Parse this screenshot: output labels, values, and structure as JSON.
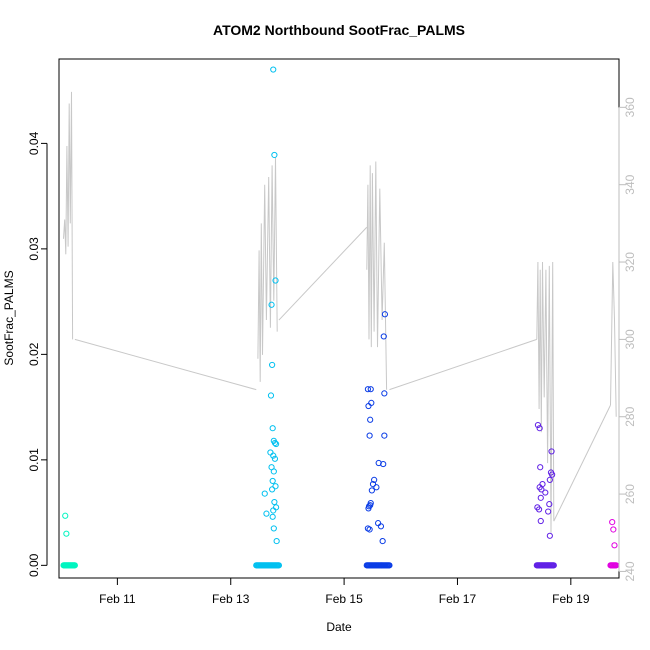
{
  "chart_data": {
    "type": "scatter",
    "title": "ATOM2 Northbound SootFrac_PALMS",
    "xlabel": "Date",
    "ylabel": "SootFrac_PALMS",
    "y2label": "",
    "x_axis": {
      "min_day": 9.97,
      "max_day": 19.85,
      "ticks": [
        {
          "day": 11,
          "label": "Feb 11"
        },
        {
          "day": 13,
          "label": "Feb 13"
        },
        {
          "day": 15,
          "label": "Feb 15"
        },
        {
          "day": 17,
          "label": "Feb 17"
        },
        {
          "day": 19,
          "label": "Feb 19"
        }
      ]
    },
    "y_axis": {
      "min": -0.0012,
      "max": 0.048,
      "ticks": [
        {
          "value": 0.0,
          "label": "0.00"
        },
        {
          "value": 0.01,
          "label": "0.01"
        },
        {
          "value": 0.02,
          "label": "0.02"
        },
        {
          "value": 0.03,
          "label": "0.03"
        },
        {
          "value": 0.04,
          "label": "0.04"
        }
      ]
    },
    "y2_axis": {
      "color": "#bdbdbd",
      "min": 238.3,
      "max": 372.5,
      "ticks": [
        {
          "value": 240,
          "label": "240"
        },
        {
          "value": 260,
          "label": "260"
        },
        {
          "value": 280,
          "label": "280"
        },
        {
          "value": 300,
          "label": "300"
        },
        {
          "value": 320,
          "label": "320"
        },
        {
          "value": 340,
          "label": "340"
        },
        {
          "value": 360,
          "label": "360"
        }
      ]
    },
    "grid": false,
    "legend": "none",
    "line_color": "#c8c8c8",
    "series": [
      {
        "color": "#00f5c0",
        "x_range": [
          10.05,
          10.25
        ],
        "zeros": 18,
        "points": [
          [
            10.08,
            0.0047
          ],
          [
            10.1,
            0.003
          ]
        ],
        "line": [
          [
            10.05,
            326
          ],
          [
            10.07,
            331
          ],
          [
            10.09,
            322
          ],
          [
            10.11,
            350
          ],
          [
            10.13,
            324
          ],
          [
            10.15,
            361
          ],
          [
            10.17,
            330
          ],
          [
            10.19,
            364
          ],
          [
            10.21,
            300
          ]
        ]
      },
      {
        "color": "#00c0f0",
        "x_range": [
          13.45,
          13.85
        ],
        "zeros": 30,
        "points": [
          [
            13.75,
            0.047
          ],
          [
            13.77,
            0.0389
          ],
          [
            13.79,
            0.027
          ],
          [
            13.72,
            0.0247
          ],
          [
            13.73,
            0.019
          ],
          [
            13.71,
            0.0161
          ],
          [
            13.74,
            0.013
          ],
          [
            13.76,
            0.0118
          ],
          [
            13.78,
            0.0116
          ],
          [
            13.8,
            0.0115
          ],
          [
            13.7,
            0.0107
          ],
          [
            13.75,
            0.0104
          ],
          [
            13.78,
            0.0101
          ],
          [
            13.72,
            0.0093
          ],
          [
            13.76,
            0.0089
          ],
          [
            13.74,
            0.008
          ],
          [
            13.79,
            0.0075
          ],
          [
            13.73,
            0.0072
          ],
          [
            13.6,
            0.0068
          ],
          [
            13.77,
            0.006
          ],
          [
            13.8,
            0.0055
          ],
          [
            13.75,
            0.0052
          ],
          [
            13.63,
            0.0049
          ],
          [
            13.74,
            0.0046
          ],
          [
            13.76,
            0.0035
          ],
          [
            13.81,
            0.0023
          ]
        ],
        "line": [
          [
            13.48,
            295
          ],
          [
            13.5,
            323
          ],
          [
            13.52,
            289
          ],
          [
            13.54,
            330
          ],
          [
            13.56,
            296
          ],
          [
            13.6,
            340
          ],
          [
            13.63,
            305
          ],
          [
            13.67,
            342
          ],
          [
            13.7,
            303
          ],
          [
            13.73,
            345
          ],
          [
            13.76,
            310
          ],
          [
            13.79,
            347
          ],
          [
            13.82,
            302
          ]
        ]
      },
      {
        "color": "#0a3ce6",
        "x_range": [
          15.4,
          15.8
        ],
        "zeros": 28,
        "points": [
          [
            15.72,
            0.0238
          ],
          [
            15.7,
            0.0217
          ],
          [
            15.42,
            0.0167
          ],
          [
            15.47,
            0.0167
          ],
          [
            15.71,
            0.0163
          ],
          [
            15.48,
            0.0154
          ],
          [
            15.43,
            0.0151
          ],
          [
            15.46,
            0.0138
          ],
          [
            15.45,
            0.0123
          ],
          [
            15.71,
            0.0123
          ],
          [
            15.61,
            0.0097
          ],
          [
            15.69,
            0.0096
          ],
          [
            15.53,
            0.0081
          ],
          [
            15.51,
            0.0077
          ],
          [
            15.57,
            0.0074
          ],
          [
            15.49,
            0.0071
          ],
          [
            15.47,
            0.0059
          ],
          [
            15.46,
            0.0057
          ],
          [
            15.44,
            0.0056
          ],
          [
            15.43,
            0.0054
          ],
          [
            15.6,
            0.004
          ],
          [
            15.65,
            0.0037
          ],
          [
            15.42,
            0.0035
          ],
          [
            15.45,
            0.0034
          ],
          [
            15.68,
            0.0023
          ]
        ],
        "line": [
          [
            15.4,
            318
          ],
          [
            15.42,
            340
          ],
          [
            15.44,
            300
          ],
          [
            15.46,
            345
          ],
          [
            15.48,
            298
          ],
          [
            15.5,
            343
          ],
          [
            15.53,
            302
          ],
          [
            15.56,
            346
          ],
          [
            15.59,
            298
          ],
          [
            15.63,
            339
          ],
          [
            15.67,
            305
          ],
          [
            15.71,
            325
          ],
          [
            15.75,
            287
          ]
        ]
      },
      {
        "color": "#6020e6",
        "x_range": [
          18.4,
          18.7
        ],
        "zeros": 24,
        "points": [
          [
            18.42,
            0.0133
          ],
          [
            18.45,
            0.013
          ],
          [
            18.66,
            0.0108
          ],
          [
            18.46,
            0.0093
          ],
          [
            18.65,
            0.0088
          ],
          [
            18.67,
            0.0086
          ],
          [
            18.63,
            0.0081
          ],
          [
            18.5,
            0.0077
          ],
          [
            18.45,
            0.0074
          ],
          [
            18.48,
            0.0072
          ],
          [
            18.55,
            0.0069
          ],
          [
            18.47,
            0.0064
          ],
          [
            18.62,
            0.0058
          ],
          [
            18.41,
            0.0055
          ],
          [
            18.44,
            0.0053
          ],
          [
            18.6,
            0.0051
          ],
          [
            18.47,
            0.0042
          ],
          [
            18.63,
            0.0028
          ]
        ],
        "line": [
          [
            18.4,
            300
          ],
          [
            18.42,
            320
          ],
          [
            18.44,
            282
          ],
          [
            18.46,
            318
          ],
          [
            18.48,
            276
          ],
          [
            18.5,
            320
          ],
          [
            18.53,
            285
          ],
          [
            18.56,
            318
          ],
          [
            18.59,
            268
          ],
          [
            18.62,
            319
          ],
          [
            18.65,
            250
          ],
          [
            18.68,
            320
          ],
          [
            18.7,
            253
          ]
        ]
      },
      {
        "color": "#e000e0",
        "x_range": [
          19.7,
          19.8
        ],
        "zeros": 8,
        "points": [
          [
            19.73,
            0.0041
          ],
          [
            19.75,
            0.0034
          ],
          [
            19.77,
            0.0019
          ]
        ],
        "line": [
          [
            19.7,
            283
          ],
          [
            19.74,
            320
          ],
          [
            19.77,
            305
          ],
          [
            19.8,
            280
          ]
        ]
      }
    ],
    "connectors": [
      [
        [
          10.25,
          300
        ],
        [
          13.45,
          287
        ]
      ],
      [
        [
          13.85,
          305
        ],
        [
          15.4,
          329
        ]
      ],
      [
        [
          15.8,
          287
        ],
        [
          18.4,
          300
        ]
      ],
      [
        [
          18.7,
          253
        ],
        [
          19.7,
          283
        ]
      ]
    ]
  }
}
